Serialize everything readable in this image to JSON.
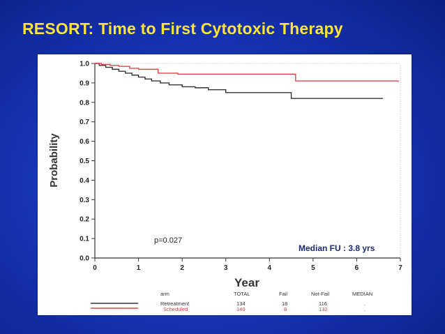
{
  "slide": {
    "title": "RESORT: Time to First Cytotoxic Therapy"
  },
  "chart_data": {
    "type": "line",
    "subtype": "kaplan-meier-step",
    "xlabel": "Year",
    "ylabel": "Probability",
    "xlim": [
      0,
      7
    ],
    "ylim": [
      0,
      1.0
    ],
    "x_ticks": [
      0,
      1,
      2,
      3,
      4,
      5,
      6,
      7
    ],
    "y_ticks": [
      0.0,
      0.1,
      0.2,
      0.3,
      0.4,
      0.5,
      0.6,
      0.7,
      0.8,
      0.9,
      1.0
    ],
    "y_tick_labels": [
      "0.0",
      "0.1",
      "0.2",
      "0.3",
      "0.4",
      "0.5",
      "0.6",
      "0.7",
      "0.8",
      "0.9",
      "1.0"
    ],
    "grid": false,
    "annotations": {
      "pvalue": "p=0.027",
      "median_fu": "Median FU : 3.8 yrs"
    },
    "series": [
      {
        "name": "Retreatment",
        "color": "#333333",
        "x": [
          0,
          0.1,
          0.25,
          0.4,
          0.55,
          0.7,
          0.85,
          1.0,
          1.15,
          1.3,
          1.5,
          1.7,
          2.0,
          2.3,
          2.6,
          3.0,
          4.5,
          6.6
        ],
        "y": [
          1.0,
          0.99,
          0.98,
          0.97,
          0.96,
          0.95,
          0.94,
          0.93,
          0.92,
          0.91,
          0.9,
          0.89,
          0.88,
          0.875,
          0.865,
          0.85,
          0.82,
          0.82
        ]
      },
      {
        "name": "Scheduled",
        "color": "#e04545",
        "x": [
          0,
          0.15,
          0.35,
          0.55,
          0.8,
          1.0,
          1.45,
          1.9,
          4.6,
          6.95
        ],
        "y": [
          1.0,
          0.995,
          0.99,
          0.985,
          0.975,
          0.97,
          0.95,
          0.945,
          0.91,
          0.905
        ]
      }
    ],
    "legend": {
      "placement": "bottom",
      "headers": [
        "arm",
        "TOTAL",
        "Fail",
        "Not-Fail",
        "MEDIAN"
      ],
      "rows": [
        {
          "arm": "Retreatment",
          "total": "134",
          "fail": "18",
          "not_fail": "116",
          "median": "."
        },
        {
          "arm": "Scheduled",
          "total": "140",
          "fail": "8",
          "not_fail": "132",
          "median": "."
        }
      ]
    }
  }
}
